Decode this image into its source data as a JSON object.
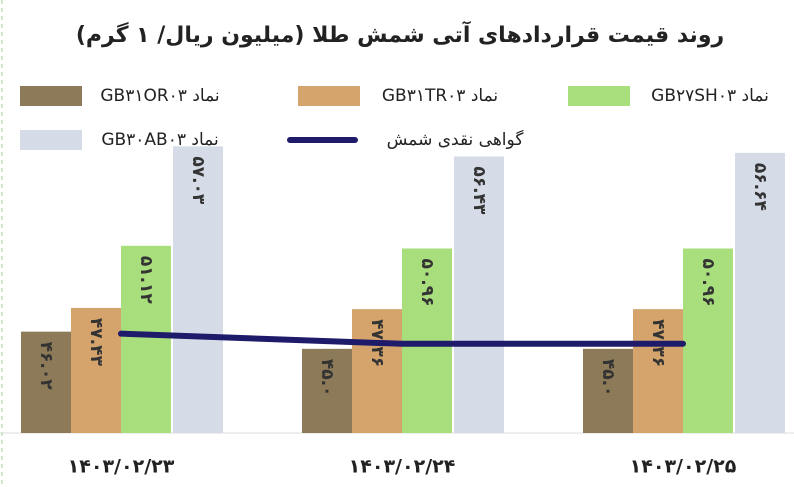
{
  "chart_data": {
    "type": "bar",
    "title": "روند قیمت قراردادهای آتی شمش طلا (میلیون ریال/ ۱ گرم)",
    "categories": [
      "۱۴۰۳/۰۲/۲۳",
      "۱۴۰۳/۰۲/۲۴",
      "۱۴۰۳/۰۲/۲۵"
    ],
    "ylim": [
      40,
      58
    ],
    "series": [
      {
        "name": "نماد GB۳۱OR۰۳",
        "color": "#8c7a58",
        "values": [
          46.02,
          45.0,
          45.0
        ],
        "value_labels": [
          "۴۶.۰۲",
          "۴۵.۰",
          "۴۵.۰"
        ]
      },
      {
        "name": "نماد GB۳۱TR۰۳",
        "color": "#d4a46c",
        "values": [
          47.43,
          47.36,
          47.36
        ],
        "value_labels": [
          "۴۷.۴۳",
          "۴۷.۳۶",
          "۴۷.۳۶"
        ]
      },
      {
        "name": "نماد GB۲۷SH۰۳",
        "color": "#a8de7c",
        "values": [
          51.12,
          50.96,
          50.96
        ],
        "value_labels": [
          "۵۱.۱۲",
          "۵۰.۹۶",
          "۵۰.۹۶"
        ]
      },
      {
        "name": "نماد GB۳۰AB۰۳",
        "color": "#d6dce7",
        "values": [
          57.03,
          56.43,
          56.64
        ],
        "value_labels": [
          "۵۷.۰۳",
          "۵۶.۴۳",
          "۵۶.۶۴"
        ]
      },
      {
        "name": "گواهی نقدی شمش",
        "color": "#1e1b6a",
        "type": "line",
        "values": [
          45.9,
          45.3,
          45.3
        ]
      }
    ]
  }
}
